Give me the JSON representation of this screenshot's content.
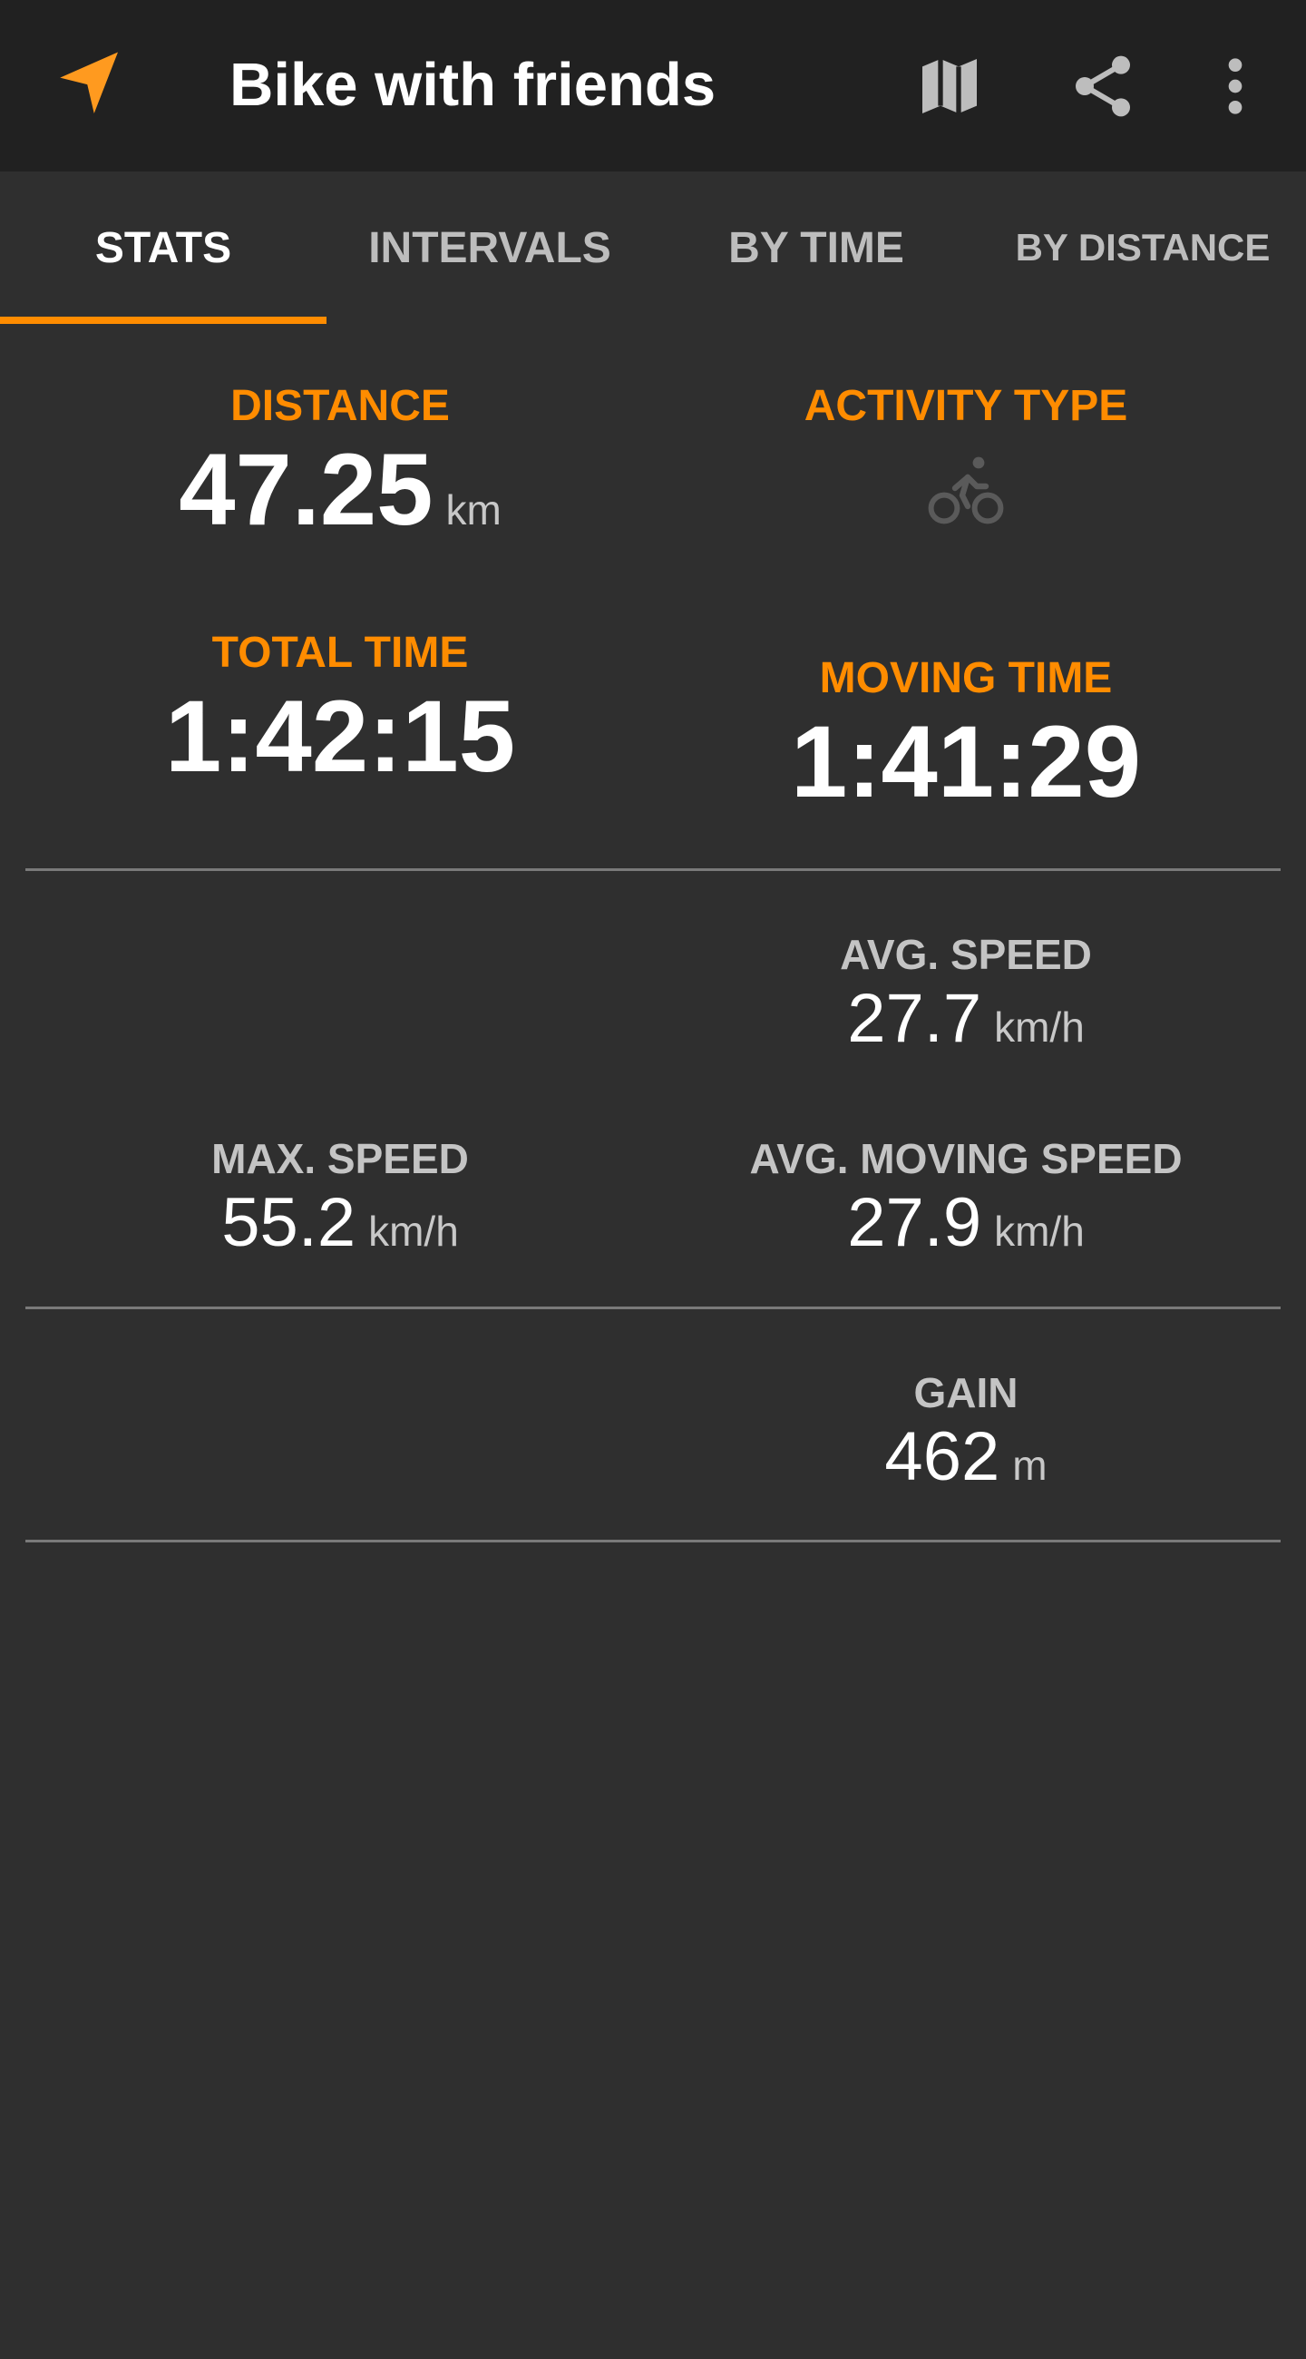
{
  "appbar": {
    "title": "Bike with friends",
    "icons": {
      "nav": "navigation-arrow-icon",
      "map": "map-icon",
      "share": "share-icon",
      "more": "more-vert-icon"
    },
    "accent_color": "#ff8c00"
  },
  "tabs": [
    {
      "label": "STATS",
      "active": true
    },
    {
      "label": "INTERVALS",
      "active": false
    },
    {
      "label": "BY TIME",
      "active": false
    },
    {
      "label": "BY DISTANCE",
      "active": false
    }
  ],
  "stats": {
    "distance": {
      "label": "DISTANCE",
      "value": "47.25",
      "unit": "km"
    },
    "activity_type": {
      "label": "ACTIVITY TYPE",
      "icon": "bike-icon"
    },
    "total_time": {
      "label": "TOTAL TIME",
      "value": "1:42:15"
    },
    "moving_time": {
      "label": "MOVING TIME",
      "value": "1:41:29"
    },
    "avg_speed": {
      "label": "AVG. SPEED",
      "value": "27.7",
      "unit": "km/h"
    },
    "max_speed": {
      "label": "MAX. SPEED",
      "value": "55.2",
      "unit": "km/h"
    },
    "avg_moving_speed": {
      "label": "AVG. MOVING SPEED",
      "value": "27.9",
      "unit": "km/h"
    },
    "gain": {
      "label": "GAIN",
      "value": "462",
      "unit": "m"
    }
  }
}
